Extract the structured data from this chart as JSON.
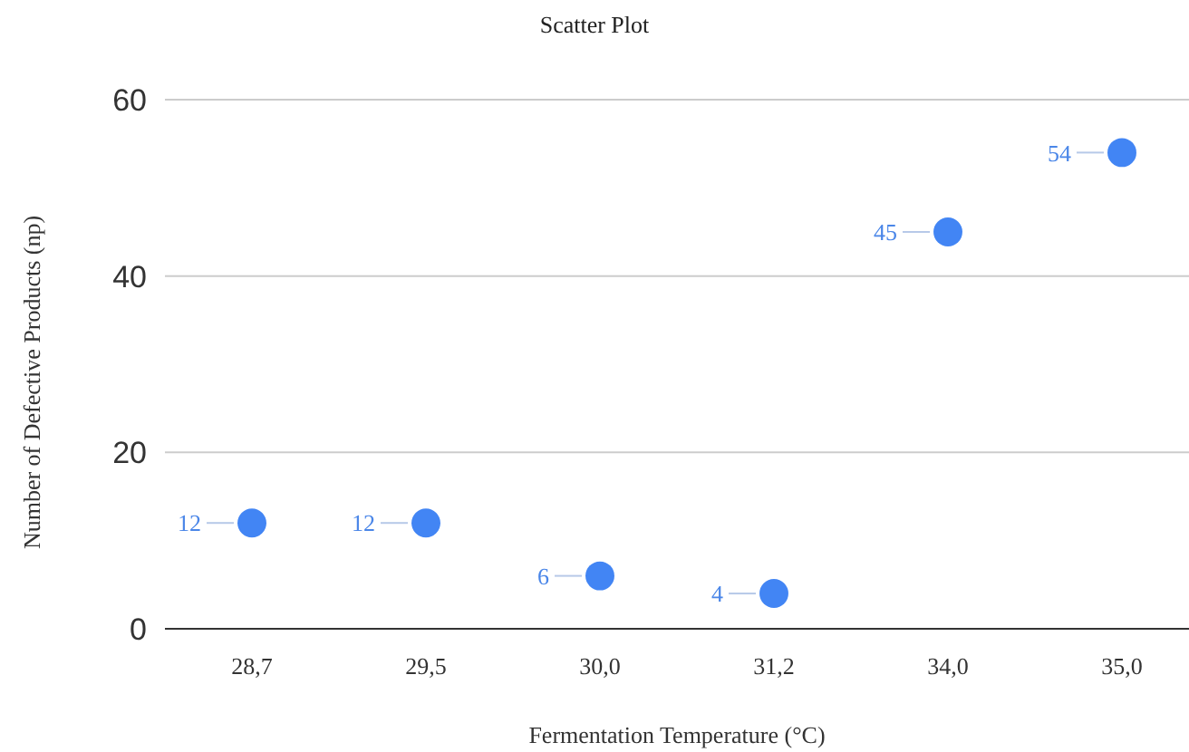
{
  "chart_data": {
    "type": "scatter",
    "title": "Scatter Plot",
    "xlabel": "Fermentation Temperature (°C)",
    "ylabel": "Number of Defective Products (np)",
    "categories": [
      "28,7",
      "29,5",
      "30,0",
      "31,2",
      "34,0",
      "35,0"
    ],
    "series": [
      {
        "color": "#4285f4",
        "values": [
          12,
          12,
          6,
          4,
          45,
          54
        ]
      }
    ],
    "ylim": [
      0,
      60
    ],
    "yticks": [
      0,
      20,
      40,
      60
    ],
    "grid": "y",
    "marker": "circle",
    "data_labels": true
  }
}
